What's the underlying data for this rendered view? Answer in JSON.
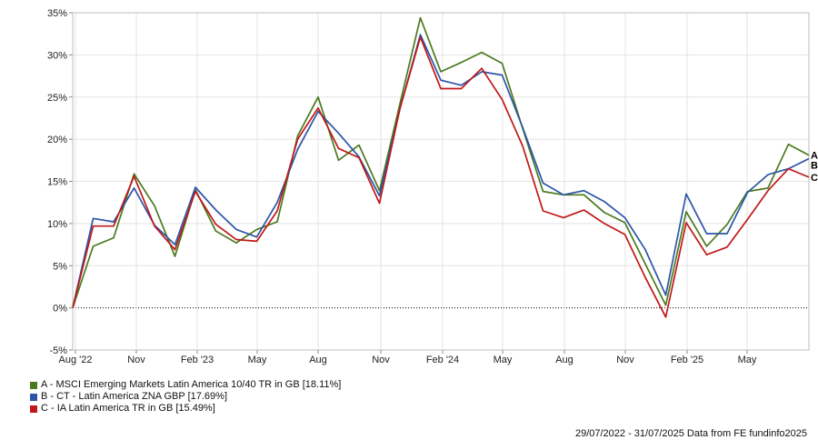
{
  "chart_data": {
    "type": "line",
    "y_axis": {
      "min": -5,
      "max": 35,
      "step": 5,
      "tick_labels": [
        "-5%",
        "0%",
        "5%",
        "10%",
        "15%",
        "20%",
        "25%",
        "30%",
        "35%"
      ]
    },
    "x_axis": {
      "tick_labels": [
        "Aug '22",
        "Nov",
        "Feb '23",
        "May",
        "Aug",
        "Nov",
        "Feb '24",
        "May",
        "Aug",
        "Nov",
        "Feb '25",
        "May"
      ]
    },
    "zero_line": "dotted",
    "grid": true,
    "series": [
      {
        "name": "A - MSCI Emerging Markets Latin America 10/40 TR in GB [18.11%]",
        "end_label": "A",
        "color": "#4a7a1e",
        "values": [
          0,
          7.3,
          8.3,
          15.9,
          12.1,
          6.1,
          14.0,
          9.1,
          7.7,
          9.3,
          10.2,
          20.4,
          25.0,
          17.5,
          19.3,
          13.9,
          24.2,
          34.4,
          28.0,
          29.1,
          30.3,
          29.0,
          21.3,
          13.8,
          13.4,
          13.4,
          11.3,
          10.1,
          5.2,
          0.3,
          11.4,
          7.3,
          9.9,
          13.8,
          14.2,
          19.4,
          18.1
        ]
      },
      {
        "name": "B - CT - Latin America ZNA GBP [17.69%]",
        "end_label": "B",
        "color": "#2c55a8",
        "values": [
          0,
          10.6,
          10.2,
          14.2,
          9.8,
          7.5,
          14.3,
          11.6,
          9.3,
          8.4,
          12.5,
          18.8,
          23.3,
          20.7,
          17.9,
          13.3,
          23.6,
          32.4,
          27.0,
          26.4,
          28.0,
          27.6,
          21.4,
          14.8,
          13.4,
          13.9,
          12.6,
          10.7,
          6.9,
          1.5,
          13.5,
          8.8,
          8.8,
          13.7,
          15.8,
          16.5,
          17.7
        ]
      },
      {
        "name": "C - IA Latin America TR in GB [15.49%]",
        "end_label": "C",
        "color": "#c01818",
        "values": [
          0,
          9.7,
          9.7,
          15.6,
          9.7,
          6.9,
          13.8,
          9.9,
          8.1,
          7.9,
          11.5,
          20.0,
          23.7,
          18.9,
          17.8,
          12.4,
          23.6,
          32.1,
          26.0,
          26.0,
          28.4,
          24.7,
          19.2,
          11.5,
          10.7,
          11.6,
          10.0,
          8.7,
          3.6,
          -1.1,
          10.1,
          6.3,
          7.2,
          10.5,
          13.9,
          16.5,
          15.5
        ]
      }
    ]
  },
  "footer": {
    "date_range": "29/07/2022 - 31/07/2025",
    "source": "Data from FE fundinfo2025"
  }
}
